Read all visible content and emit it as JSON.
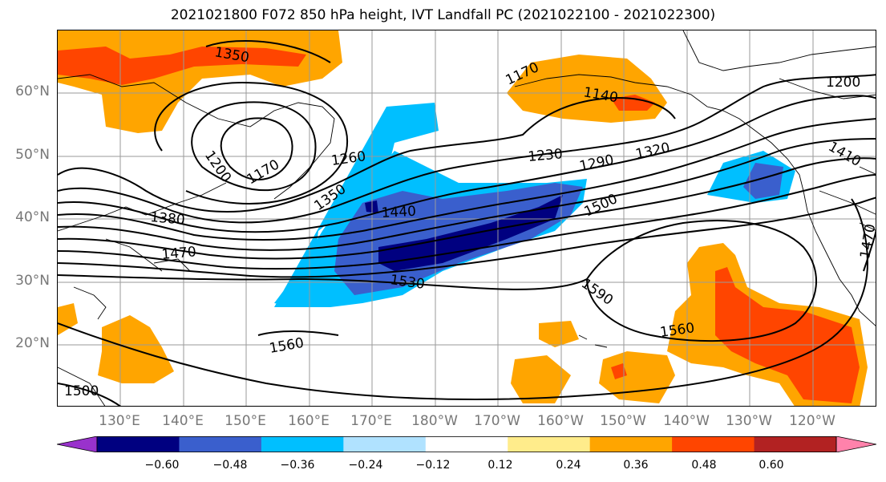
{
  "title": "2021021800 F072 850 hPa height, IVT Landfall PC (2021022100 - 2021022300)",
  "lat_labels": [
    "60°N",
    "50°N",
    "40°N",
    "30°N",
    "20°N"
  ],
  "lon_labels": [
    "130°E",
    "140°E",
    "150°E",
    "160°E",
    "170°E",
    "180°W",
    "170°W",
    "160°W",
    "150°W",
    "140°W",
    "130°W",
    "120°W"
  ],
  "contour_labels": [
    "1350",
    "1170",
    "1140",
    "1200",
    "1200",
    "1170",
    "1260",
    "1230",
    "1290",
    "1320",
    "1410",
    "1350",
    "1440",
    "1380",
    "1500",
    "1470",
    "1530",
    "1590",
    "1560",
    "1560",
    "1470",
    "1500"
  ],
  "colorbar": {
    "ticks": [
      "−0.60",
      "−0.48",
      "−0.36",
      "−0.24",
      "−0.12",
      "0.12",
      "0.24",
      "0.36",
      "0.48",
      "0.60"
    ],
    "colors": [
      "#9932cc",
      "#000080",
      "#3a5fcd",
      "#00bfff",
      "#b0e2ff",
      "#ffffff",
      "#ffec8b",
      "#ffa500",
      "#ff4500",
      "#b22222",
      "#ff82ab"
    ]
  }
}
